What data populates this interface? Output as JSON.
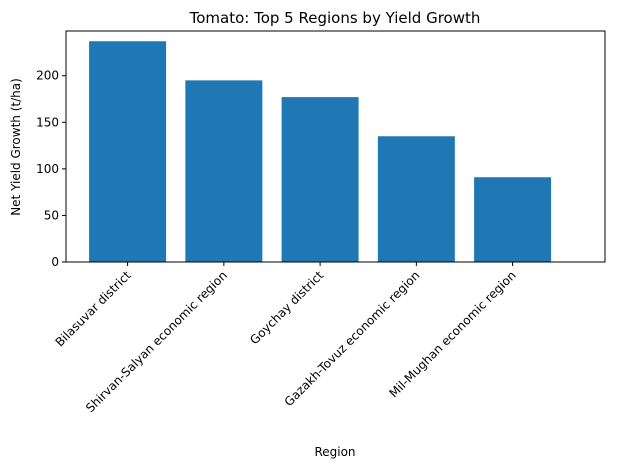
{
  "chart_data": {
    "type": "bar",
    "title": "Tomato: Top 5 Regions by Yield Growth",
    "xlabel": "Region",
    "ylabel": "Net Yield Growth (t/ha)",
    "categories": [
      "Bilasuvar district",
      "Shirvan-Salyan economic region",
      "Goychay district",
      "Gazakh-Tovuz economic region",
      "Mil-Mughan economic region"
    ],
    "values": [
      237,
      195,
      177,
      135,
      91
    ],
    "ylim": [
      0,
      248
    ],
    "yticks": [
      0,
      50,
      100,
      150,
      200
    ],
    "bar_color": "#1f77b4",
    "grid": false,
    "legend": "none"
  }
}
